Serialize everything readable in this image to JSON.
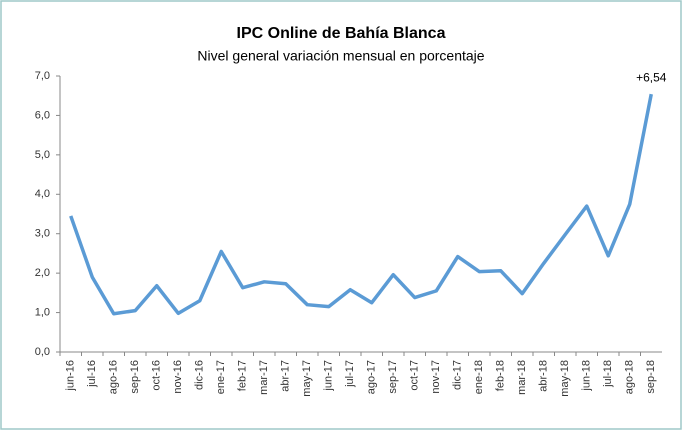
{
  "chart_data": {
    "type": "line",
    "title": "IPC Online de Bahía Blanca",
    "subtitle": "Nivel general variación mensual en porcentaje",
    "categories": [
      "jun-16",
      "jul-16",
      "ago-16",
      "sep-16",
      "oct-16",
      "nov-16",
      "dic-16",
      "ene-17",
      "feb-17",
      "mar-17",
      "abr-17",
      "may-17",
      "jun-17",
      "jul-17",
      "ago-17",
      "sep-17",
      "oct-17",
      "nov-17",
      "dic-17",
      "ene-18",
      "feb-18",
      "mar-18",
      "abr-18",
      "may-18",
      "jun-18",
      "jul-18",
      "ago-18",
      "sep-18"
    ],
    "series": [
      {
        "name": "Nivel general",
        "color": "#5b9bd5",
        "values": [
          3.45,
          1.9,
          0.97,
          1.05,
          1.68,
          0.98,
          1.3,
          2.55,
          1.63,
          1.78,
          1.73,
          1.2,
          1.15,
          1.58,
          1.25,
          1.96,
          1.38,
          1.55,
          2.42,
          2.04,
          2.06,
          1.48,
          2.25,
          2.98,
          3.7,
          2.44,
          3.75,
          6.54
        ],
        "value_labels": [
          null,
          null,
          null,
          null,
          null,
          null,
          null,
          null,
          null,
          null,
          null,
          null,
          null,
          null,
          null,
          null,
          null,
          null,
          null,
          null,
          null,
          null,
          null,
          null,
          null,
          null,
          null,
          "+6,54"
        ]
      }
    ],
    "ylim": [
      0,
      7
    ],
    "yticks": [
      {
        "value": 0,
        "label": "0,0"
      },
      {
        "value": 1,
        "label": "1,0"
      },
      {
        "value": 2,
        "label": "2,0"
      },
      {
        "value": 3,
        "label": "3,0"
      },
      {
        "value": 4,
        "label": "4,0"
      },
      {
        "value": 5,
        "label": "5,0"
      },
      {
        "value": 6,
        "label": "6,0"
      },
      {
        "value": 7,
        "label": "7,0"
      }
    ],
    "grid": false
  }
}
